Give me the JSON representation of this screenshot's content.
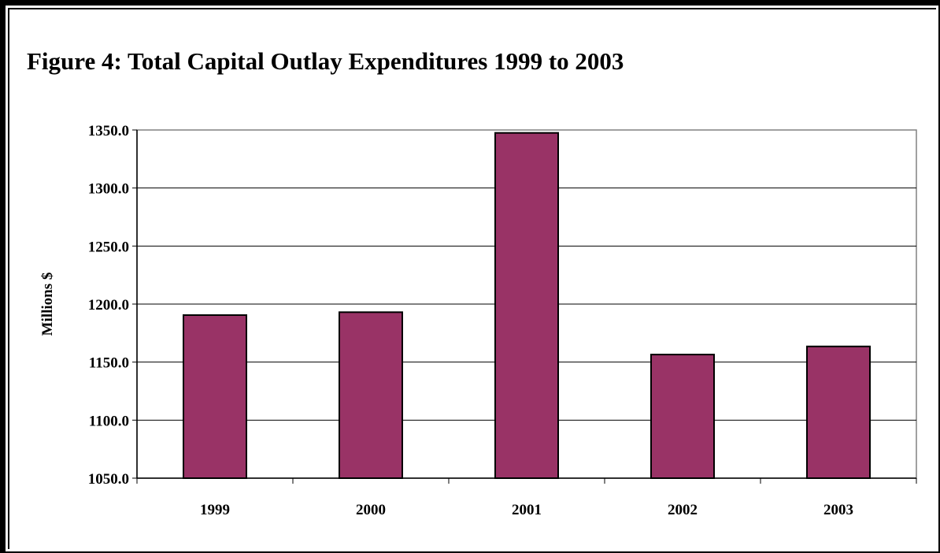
{
  "title": "Figure 4: Total Capital Outlay Expenditures 1999 to 2003",
  "chart_data": {
    "type": "bar",
    "title": "Figure 4: Total Capital Outlay Expenditures 1999 to 2003",
    "xlabel": "",
    "ylabel": "Millions $",
    "categories": [
      "1999",
      "2000",
      "2001",
      "2002",
      "2003"
    ],
    "values": [
      1190.5,
      1193.0,
      1347.5,
      1156.5,
      1163.5
    ],
    "ylim": [
      1050,
      1350
    ],
    "yticks": [
      1050.0,
      1100.0,
      1150.0,
      1200.0,
      1250.0,
      1300.0,
      1350.0
    ],
    "ytick_labels": [
      "1050.0",
      "1100.0",
      "1150.0",
      "1200.0",
      "1250.0",
      "1300.0",
      "1350.0"
    ],
    "grid": true,
    "legend": "none",
    "bar_color": "#993366"
  }
}
